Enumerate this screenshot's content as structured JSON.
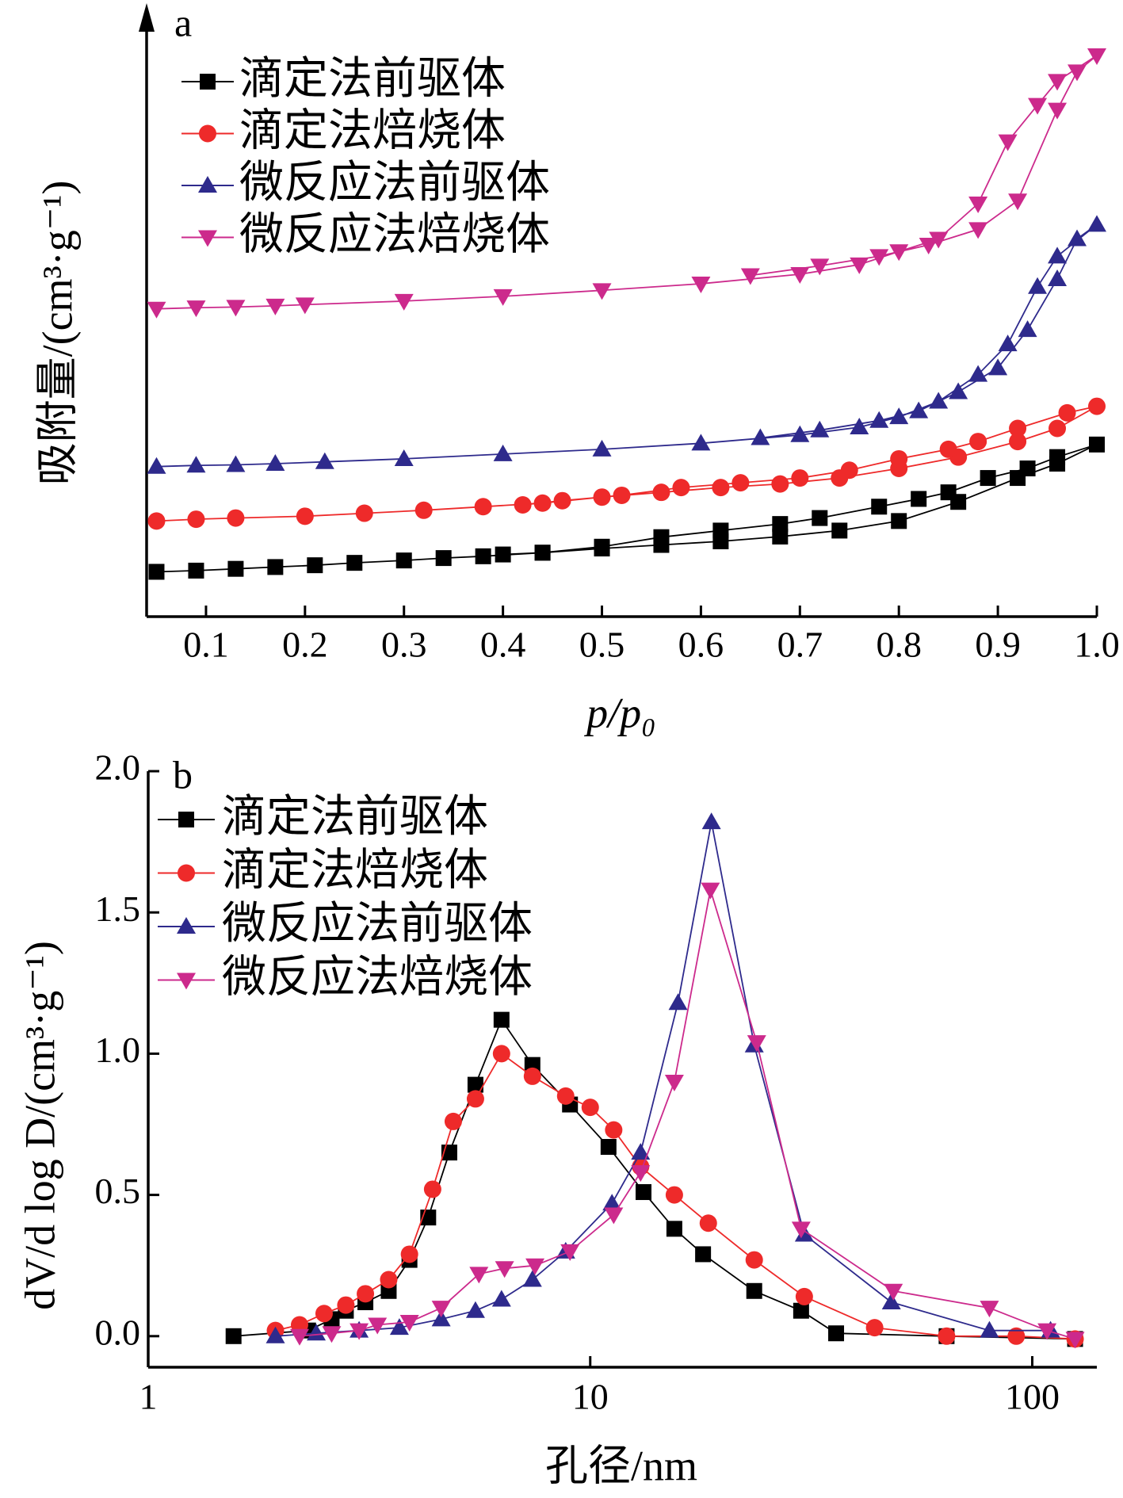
{
  "chart_data": [
    {
      "type": "line",
      "label": "a",
      "xlabel": "p/p₀",
      "ylabel": "吸附量/(cm³·g⁻¹)",
      "xlim": [
        0.04,
        1.0
      ],
      "ylim": [
        0,
        100
      ],
      "xticks": [
        0.1,
        0.2,
        0.3,
        0.4,
        0.5,
        0.6,
        0.7,
        0.8,
        0.9,
        {
          "value": 1.0,
          "label": "1.0"
        }
      ],
      "legend": "upper left",
      "series": [
        {
          "name": "滴定法前驱体",
          "color": "#000000",
          "marker": "square",
          "x": [
            0.05,
            0.09,
            0.13,
            0.17,
            0.21,
            0.25,
            0.3,
            0.34,
            0.38,
            0.44,
            0.5,
            0.56,
            0.62,
            0.68,
            0.74,
            0.8,
            0.86,
            0.92,
            0.96,
            1.0,
            0.96,
            0.93,
            0.89,
            0.85,
            0.82,
            0.78,
            0.72,
            0.68,
            0.62,
            0.56,
            0.5,
            0.44,
            0.4
          ],
          "values": [
            7.5,
            7.7,
            8.0,
            8.3,
            8.6,
            9.0,
            9.4,
            9.8,
            10.1,
            10.7,
            11.4,
            12.0,
            12.6,
            13.4,
            14.4,
            16.0,
            19.2,
            23.2,
            25.6,
            28.8,
            26.7,
            24.8,
            23.2,
            20.8,
            19.7,
            18.4,
            16.5,
            15.5,
            14.4,
            13.3,
            11.7,
            10.7,
            10.4
          ]
        },
        {
          "name": "滴定法焙烧体",
          "color": "#ee2a2a",
          "marker": "circle",
          "x": [
            0.05,
            0.09,
            0.13,
            0.2,
            0.26,
            0.32,
            0.38,
            0.44,
            0.5,
            0.56,
            0.62,
            0.68,
            0.74,
            0.8,
            0.86,
            0.92,
            0.96,
            1.0,
            0.97,
            0.92,
            0.88,
            0.85,
            0.8,
            0.75,
            0.7,
            0.64,
            0.58,
            0.52,
            0.46,
            0.42
          ],
          "values": [
            16.0,
            16.3,
            16.5,
            16.8,
            17.3,
            17.8,
            18.4,
            19.0,
            20.0,
            20.8,
            21.6,
            22.2,
            23.2,
            24.8,
            26.7,
            29.3,
            31.5,
            35.2,
            34.1,
            31.5,
            29.3,
            28.0,
            26.4,
            24.5,
            23.2,
            22.4,
            21.6,
            20.3,
            19.4,
            18.7
          ]
        },
        {
          "name": "微反应法前驱体",
          "color": "#2e2a8c",
          "marker": "triangle-up",
          "x": [
            0.05,
            0.09,
            0.13,
            0.17,
            0.22,
            0.3,
            0.4,
            0.5,
            0.6,
            0.7,
            0.76,
            0.8,
            0.84,
            0.88,
            0.91,
            0.94,
            0.96,
            1.0,
            0.98,
            0.96,
            0.93,
            0.9,
            0.86,
            0.82,
            0.78,
            0.72,
            0.66
          ],
          "values": [
            25.1,
            25.3,
            25.4,
            25.6,
            25.9,
            26.4,
            27.2,
            28.0,
            29.0,
            30.4,
            31.7,
            33.4,
            36.0,
            40.5,
            45.6,
            55.2,
            60.3,
            65.6,
            63.2,
            56.5,
            48.0,
            41.6,
            37.6,
            34.4,
            32.8,
            31.2,
            29.9
          ]
        },
        {
          "name": "微反应法焙烧体",
          "color": "#cc2a8c",
          "marker": "triangle-down",
          "x": [
            0.05,
            0.09,
            0.13,
            0.17,
            0.2,
            0.3,
            0.4,
            0.5,
            0.6,
            0.7,
            0.76,
            0.8,
            0.84,
            0.88,
            0.91,
            0.94,
            0.96,
            1.0,
            0.98,
            0.96,
            0.92,
            0.88,
            0.83,
            0.78,
            0.72,
            0.65
          ],
          "values": [
            51.5,
            51.7,
            51.8,
            52.0,
            52.2,
            52.8,
            53.6,
            54.6,
            55.7,
            57.3,
            58.9,
            61.1,
            63.2,
            69.1,
            79.5,
            85.6,
            89.6,
            93.9,
            91.2,
            84.8,
            69.6,
            64.8,
            62.2,
            60.3,
            58.7,
            57.1
          ]
        }
      ]
    },
    {
      "type": "line",
      "label": "b",
      "xlabel": "孔径/nm",
      "ylabel": "dV/d log D/(cm³·g⁻¹)",
      "xscale": "log",
      "xlim": [
        1,
        140
      ],
      "ylim": [
        -0.11,
        2.0
      ],
      "xticks": [
        1,
        10,
        100
      ],
      "yticks": [
        {
          "value": 0.0,
          "label": "0.0"
        },
        0.5,
        {
          "value": 1.0,
          "label": "1.0"
        },
        1.5,
        {
          "value": 2.0,
          "label": "2.0"
        }
      ],
      "legend": "upper left",
      "series": [
        {
          "name": "滴定法前驱体",
          "color": "#000000",
          "marker": "square",
          "x": [
            1.56,
            2.3,
            2.6,
            2.8,
            3.1,
            3.5,
            3.9,
            4.3,
            4.8,
            5.5,
            6.3,
            7.4,
            9.0,
            11.0,
            13.2,
            15.5,
            18.0,
            23.5,
            30.0,
            36,
            64,
            125
          ],
          "values": [
            0.0,
            0.02,
            0.06,
            0.09,
            0.12,
            0.16,
            0.27,
            0.42,
            0.65,
            0.89,
            1.12,
            0.96,
            0.82,
            0.67,
            0.51,
            0.38,
            0.29,
            0.16,
            0.09,
            0.01,
            0.0,
            -0.01
          ]
        },
        {
          "name": "滴定法焙烧体",
          "color": "#ee2a2a",
          "marker": "circle",
          "x": [
            1.94,
            2.2,
            2.5,
            2.8,
            3.1,
            3.5,
            3.9,
            4.4,
            4.9,
            5.5,
            6.3,
            7.4,
            8.8,
            10.0,
            11.3,
            13.0,
            15.5,
            18.5,
            23.5,
            30.5,
            44,
            64,
            92,
            125
          ],
          "values": [
            0.02,
            0.04,
            0.08,
            0.11,
            0.15,
            0.2,
            0.29,
            0.52,
            0.76,
            0.84,
            1.0,
            0.92,
            0.85,
            0.81,
            0.73,
            0.6,
            0.5,
            0.4,
            0.27,
            0.14,
            0.03,
            0.0,
            0.0,
            -0.01
          ]
        },
        {
          "name": "微反应法前驱体",
          "color": "#2e2a8c",
          "marker": "triangle-up",
          "x": [
            1.94,
            2.4,
            3.0,
            3.7,
            4.6,
            5.5,
            6.3,
            7.4,
            8.8,
            11.2,
            13.0,
            15.8,
            18.8,
            23.5,
            30.5,
            48,
            80,
            110
          ],
          "values": [
            0.0,
            0.01,
            0.02,
            0.03,
            0.06,
            0.09,
            0.13,
            0.2,
            0.3,
            0.47,
            0.65,
            1.18,
            1.82,
            1.03,
            0.36,
            0.12,
            0.02,
            0.02
          ]
        },
        {
          "name": "微反应法焙烧体",
          "color": "#cc2a8c",
          "marker": "triangle-down",
          "x": [
            2.2,
            2.6,
            3.0,
            3.3,
            3.9,
            4.6,
            5.6,
            6.4,
            7.5,
            9.0,
            11.3,
            13.0,
            15.5,
            18.7,
            23.8,
            30.0,
            48.5,
            80,
            108,
            125
          ],
          "values": [
            0.0,
            0.01,
            0.02,
            0.04,
            0.05,
            0.1,
            0.22,
            0.24,
            0.25,
            0.3,
            0.43,
            0.58,
            0.9,
            1.58,
            1.04,
            0.38,
            0.16,
            0.1,
            0.02,
            -0.01
          ]
        }
      ]
    }
  ]
}
